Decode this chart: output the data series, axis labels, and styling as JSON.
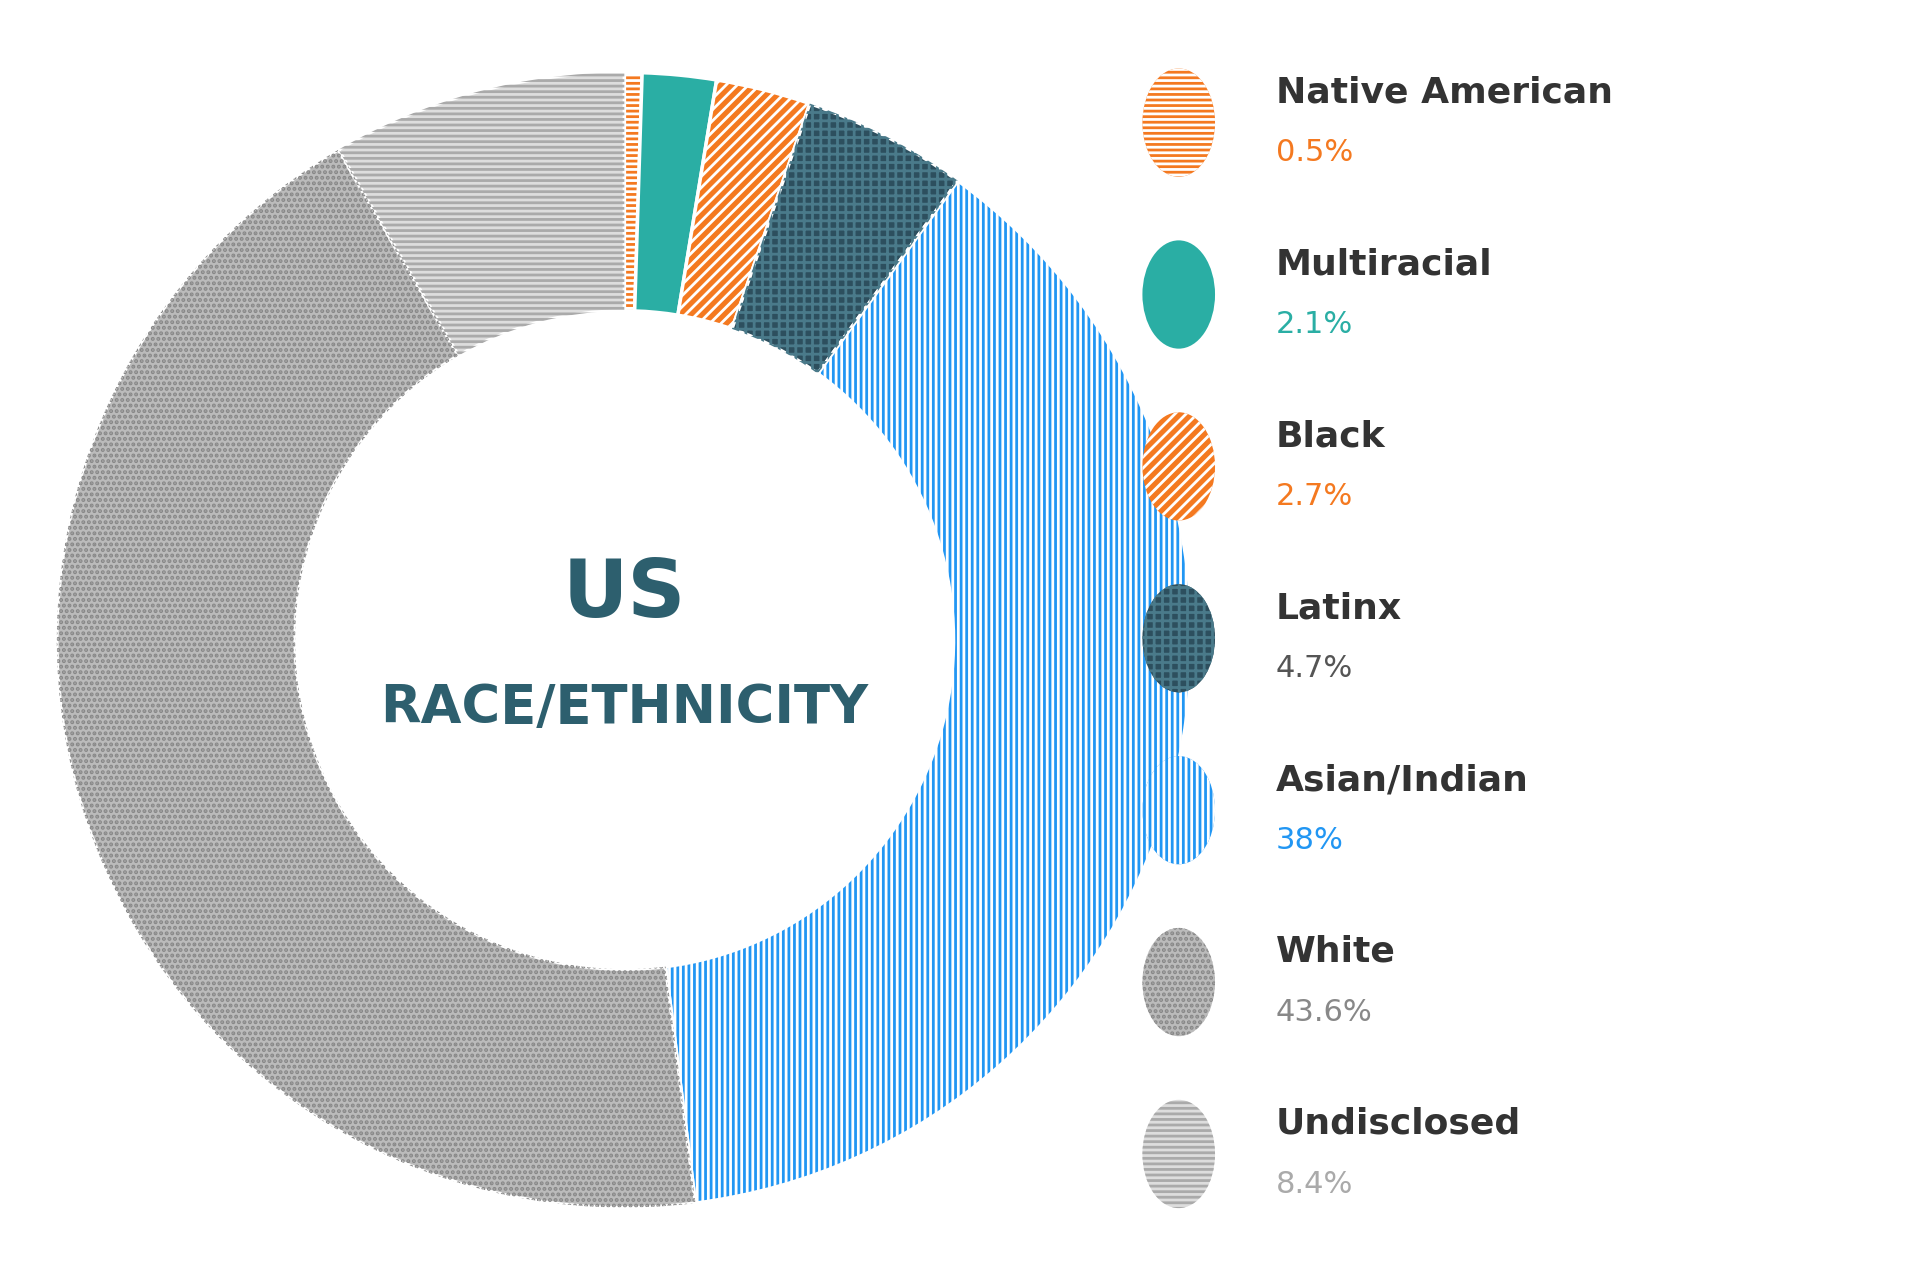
{
  "categories": [
    "Native American",
    "Multiracial",
    "Black",
    "Latinx",
    "Asian/Indian",
    "White",
    "Undisclosed"
  ],
  "values": [
    0.5,
    2.1,
    2.7,
    4.7,
    38.0,
    43.6,
    8.4
  ],
  "percentages": [
    "0.5%",
    "2.1%",
    "2.7%",
    "4.7%",
    "38%",
    "43.6%",
    "8.4%"
  ],
  "title_line1": "US",
  "title_line2": "RACE/ETHNICITY",
  "title_color": "#2D5F6E",
  "bg_color": "#FFFFFF",
  "hatch_configs": [
    {
      "base_fc": "#F47920",
      "hatch": "---",
      "hatch_ec": "#FFFFFF",
      "name_color": "#333333",
      "pct_color": "#F47920"
    },
    {
      "base_fc": "#2AAEA4",
      "hatch": "~~~",
      "hatch_ec": "#FFFFFF",
      "name_color": "#333333",
      "pct_color": "#2AAEA4"
    },
    {
      "base_fc": "#F47920",
      "hatch": "///",
      "hatch_ec": "#FFFFFF",
      "name_color": "#333333",
      "pct_color": "#F47920"
    },
    {
      "base_fc": "#2D4F5E",
      "hatch": "++",
      "hatch_ec": "#4A7A8A",
      "name_color": "#333333",
      "pct_color": "#555555"
    },
    {
      "base_fc": "#2196F3",
      "hatch": "|||",
      "hatch_ec": "#FFFFFF",
      "name_color": "#333333",
      "pct_color": "#2196F3"
    },
    {
      "base_fc": "#BBBBBB",
      "hatch": "...",
      "hatch_ec": "#888888",
      "name_color": "#333333",
      "pct_color": "#888888"
    },
    {
      "base_fc": "#DDDDDD",
      "hatch": "---",
      "hatch_ec": "#AAAAAA",
      "name_color": "#333333",
      "pct_color": "#AAAAAA"
    }
  ]
}
